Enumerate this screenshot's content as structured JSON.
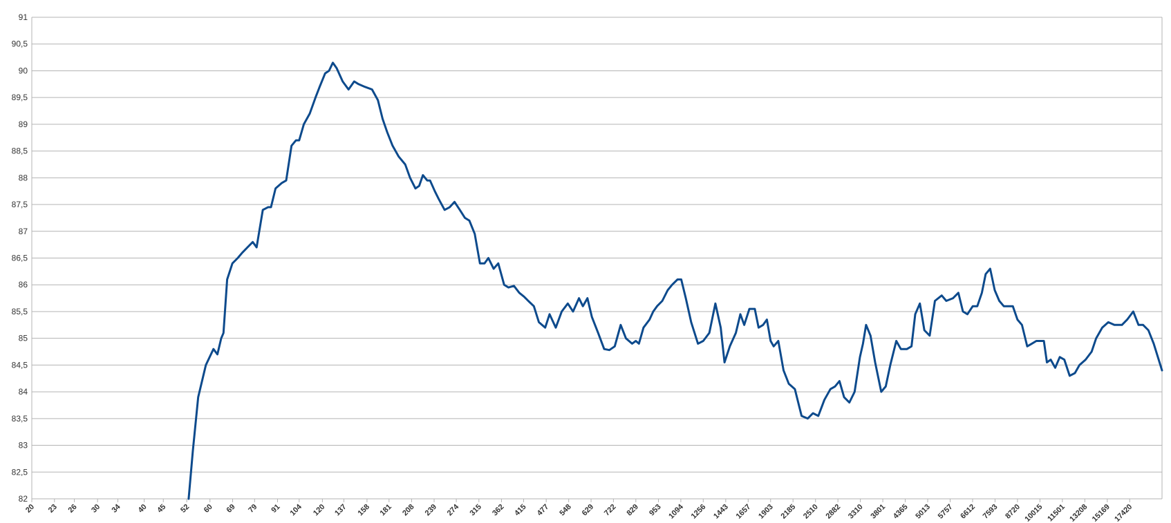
{
  "chart_data": {
    "type": "line",
    "xscale": "log",
    "xlim": [
      20,
      21260
    ],
    "xticks": [
      20,
      23,
      26,
      30,
      34,
      40,
      45,
      52,
      60,
      69,
      79,
      91,
      104,
      120,
      137,
      158,
      181,
      208,
      239,
      274,
      315,
      362,
      415,
      477,
      548,
      629,
      722,
      829,
      953,
      1094,
      1256,
      1443,
      1657,
      1903,
      2185,
      2510,
      2882,
      3310,
      3801,
      4365,
      5013,
      5757,
      6612,
      7593,
      8720,
      10015,
      11501,
      13208,
      15169,
      17420
    ],
    "ylim": [
      82,
      91
    ],
    "yticks": [
      82,
      {
        "value": 82.5,
        "label": "82,5"
      },
      83,
      {
        "value": 83.5,
        "label": "83,5"
      },
      84,
      {
        "value": 84.5,
        "label": "84,5"
      },
      85,
      {
        "value": 85.5,
        "label": "85,5"
      },
      86,
      {
        "value": 86.5,
        "label": "86,5"
      },
      87,
      {
        "value": 87.5,
        "label": "87,5"
      },
      88,
      {
        "value": 88.5,
        "label": "88,5"
      },
      89,
      {
        "value": 89.5,
        "label": "89,5"
      },
      90,
      {
        "value": 90.5,
        "label": "90,5"
      },
      91
    ],
    "grid": true,
    "x": [
      52.6,
      54,
      55.8,
      58.5,
      61.3,
      62.8,
      64.3,
      65.2,
      66.7,
      68.9,
      71.2,
      73.2,
      75.6,
      78.1,
      80,
      83.1,
      85.8,
      87.4,
      89.9,
      93.3,
      96,
      99.2,
      102,
      104,
      107,
      111,
      115,
      118,
      122,
      125,
      128,
      131,
      136,
      141,
      146,
      150,
      156,
      163,
      169,
      174,
      179,
      185,
      192,
      200,
      206,
      213,
      218,
      223,
      229,
      233,
      240,
      246,
      255,
      263,
      271,
      280,
      289,
      297,
      307,
      317,
      326,
      334,
      345,
      355,
      368,
      378,
      391,
      404,
      416,
      427,
      442,
      456,
      474,
      487,
      506,
      525,
      545,
      563,
      584,
      598,
      615,
      632,
      657,
      682,
      704,
      728,
      755,
      780,
      810,
      829,
      845,
      869,
      902,
      923,
      945,
      976,
      1009,
      1037,
      1072,
      1097,
      1128,
      1166,
      1216,
      1256,
      1304,
      1354,
      1399,
      1432,
      1480,
      1536,
      1579,
      1617,
      1670,
      1726,
      1767,
      1817,
      1860,
      1903,
      1939,
      1995,
      2061,
      2129,
      2210,
      2304,
      2392,
      2471,
      2554,
      2652,
      2752,
      2830,
      2910,
      2994,
      3093,
      3195,
      3301,
      3364,
      3428,
      3524,
      3625,
      3764,
      3870,
      3980,
      4130,
      4248,
      4410,
      4536,
      4643,
      4776,
      4911,
      5074,
      5242,
      5466,
      5622,
      5862,
      6056,
      6230,
      6404,
      6617,
      6807,
      7000,
      7166,
      7368,
      7580,
      7794,
      8014,
      8318,
      8474,
      8718,
      8964,
      9260,
      9526,
      9796,
      10030,
      10262,
      10456,
      10704,
      11006,
      11320,
      11640,
      12028,
      12424,
      12780,
      13268,
      13774,
      14164,
      14704,
      15266,
      15848,
      16600,
      17150,
      17804,
      18394,
      18920,
      19550,
      20200,
      21260
    ],
    "series": [
      {
        "color": "#0d4a8c",
        "values": [
          82.0,
          82.9,
          83.9,
          84.5,
          84.8,
          84.7,
          85.0,
          85.1,
          86.1,
          86.4,
          86.5,
          86.6,
          86.7,
          86.8,
          86.7,
          87.4,
          87.45,
          87.45,
          87.8,
          87.9,
          87.95,
          88.6,
          88.7,
          88.7,
          89.0,
          89.2,
          89.5,
          89.7,
          89.95,
          90.0,
          90.15,
          90.05,
          89.8,
          89.65,
          89.8,
          89.75,
          89.7,
          89.65,
          89.45,
          89.1,
          88.85,
          88.6,
          88.4,
          88.25,
          88.0,
          87.8,
          87.85,
          88.05,
          87.95,
          87.95,
          87.75,
          87.6,
          87.4,
          87.45,
          87.55,
          87.4,
          87.25,
          87.2,
          86.95,
          86.4,
          86.4,
          86.5,
          86.3,
          86.4,
          86.0,
          85.95,
          85.98,
          85.85,
          85.78,
          85.7,
          85.6,
          85.3,
          85.2,
          85.45,
          85.2,
          85.5,
          85.65,
          85.5,
          85.75,
          85.6,
          85.75,
          85.4,
          85.1,
          84.8,
          84.78,
          84.85,
          85.25,
          85.0,
          84.9,
          84.95,
          84.9,
          85.2,
          85.35,
          85.5,
          85.6,
          85.7,
          85.9,
          86.0,
          86.1,
          86.1,
          85.75,
          85.3,
          84.9,
          84.95,
          85.1,
          85.65,
          85.2,
          84.55,
          84.85,
          85.1,
          85.45,
          85.25,
          85.55,
          85.55,
          85.2,
          85.25,
          85.35,
          84.95,
          84.85,
          84.95,
          84.4,
          84.15,
          84.05,
          83.55,
          83.5,
          83.6,
          83.55,
          83.85,
          84.05,
          84.1,
          84.2,
          83.9,
          83.8,
          84.0,
          84.65,
          84.9,
          85.25,
          85.05,
          84.55,
          84.0,
          84.1,
          84.5,
          84.95,
          84.8,
          84.8,
          84.85,
          85.45,
          85.65,
          85.15,
          85.05,
          85.7,
          85.8,
          85.7,
          85.75,
          85.85,
          85.5,
          85.45,
          85.6,
          85.6,
          85.85,
          86.2,
          86.3,
          85.9,
          85.7,
          85.6,
          85.6,
          85.6,
          85.35,
          85.25,
          84.85,
          84.9,
          84.95,
          84.95,
          84.95,
          84.55,
          84.6,
          84.45,
          84.65,
          84.6,
          84.3,
          84.35,
          84.5,
          84.6,
          84.75,
          85.0,
          85.2,
          85.3,
          85.25,
          85.25,
          85.35,
          85.5,
          85.25,
          85.25,
          85.15,
          84.9,
          84.4
        ]
      }
    ]
  }
}
